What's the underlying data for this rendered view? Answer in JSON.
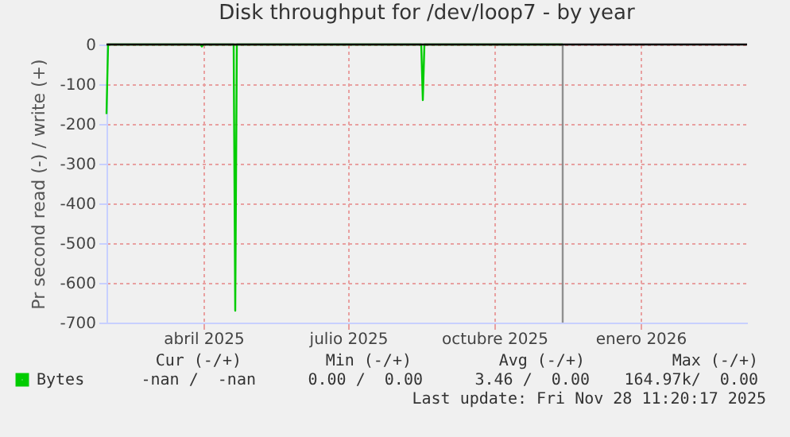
{
  "chart_data": {
    "type": "line",
    "title": "Disk throughput for /dev/loop7 - by year",
    "ylabel": "Pr second read (-) / write (+)",
    "series": [
      {
        "name": "Bytes",
        "color": "#00cc00",
        "x": [
          "2025-02-14",
          "2025-02-15",
          "2025-04-14",
          "2025-04-15",
          "2025-04-16",
          "2025-05-05",
          "2025-05-06",
          "2025-05-07",
          "2025-08-31",
          "2025-09-01",
          "2025-09-02",
          "2025-11-28"
        ],
        "values": [
          -175,
          0,
          0,
          -5,
          0,
          0,
          -670,
          0,
          0,
          -140,
          0,
          0
        ]
      }
    ],
    "xlim": [
      "2025-02-14",
      "2026-03-24"
    ],
    "xticks": [
      {
        "value": "2025-04-16",
        "label": "abril 2025"
      },
      {
        "value": "2025-07-16",
        "label": "julio 2025"
      },
      {
        "value": "2025-10-16",
        "label": "octubre 2025"
      },
      {
        "value": "2026-01-16",
        "label": "enero 2026"
      }
    ],
    "ylim": [
      -700,
      0
    ],
    "yticks": [
      -700,
      -600,
      -500,
      -400,
      -300,
      -200,
      -100,
      0
    ],
    "ref_lines": [
      {
        "axis": "x",
        "value": "2025-11-28",
        "color": "#909090"
      },
      {
        "axis": "y",
        "value": 0,
        "color": "#000000"
      }
    ],
    "grid": true,
    "legend": "bottom",
    "marker": "none",
    "line_style": "solid",
    "annotations": [
      "Cur (-/+)",
      "Min (-/+)",
      "Avg (-/+)",
      "Max (-/+)",
      "-nan /  -nan",
      "0.00 /  0.00",
      "3.46 /  0.00",
      "164.97k/  0.00",
      "Last update: Fri Nov 28 11:20:17 2025"
    ]
  }
}
